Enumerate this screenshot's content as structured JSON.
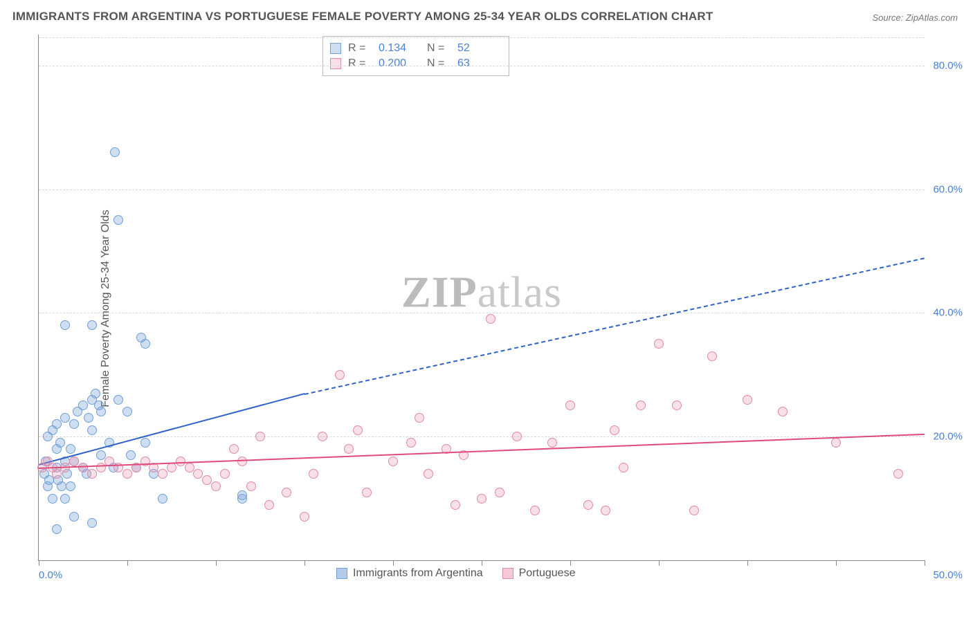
{
  "title": "IMMIGRANTS FROM ARGENTINA VS PORTUGUESE FEMALE POVERTY AMONG 25-34 YEAR OLDS CORRELATION CHART",
  "source": "Source: ZipAtlas.com",
  "ylabel": "Female Poverty Among 25-34 Year Olds",
  "watermark_bold": "ZIP",
  "watermark_rest": "atlas",
  "chart": {
    "type": "scatter",
    "xlim": [
      0,
      50
    ],
    "ylim": [
      0,
      85
    ],
    "xtick_positions": [
      0,
      5,
      10,
      15,
      20,
      25,
      30,
      35,
      40,
      45,
      50
    ],
    "xtick_labels": {
      "0": "0.0%",
      "50": "50.0%"
    },
    "ytick_positions": [
      20,
      40,
      60,
      80
    ],
    "ytick_labels": {
      "20": "20.0%",
      "40": "40.0%",
      "60": "60.0%",
      "80": "80.0%"
    },
    "grid_color": "#d8d8d8",
    "axis_color": "#888888",
    "background_color": "#ffffff",
    "tick_label_color": "#4a7fd8",
    "marker_radius": 7,
    "marker_border_width": 1.2,
    "series": [
      {
        "name": "Immigrants from Argentina",
        "fill_color": "rgba(120,160,215,0.35)",
        "border_color": "#6f9fd8",
        "R": "0.134",
        "N": "52",
        "trend": {
          "x0": 0,
          "y0": 15.5,
          "x1_solid": 15,
          "y1_solid": 27,
          "x1_dash": 50,
          "y1_dash": 49,
          "color": "#2e62c9"
        },
        "points": [
          [
            0.3,
            14
          ],
          [
            0.5,
            12
          ],
          [
            0.4,
            16
          ],
          [
            0.6,
            13
          ],
          [
            0.8,
            10
          ],
          [
            1.0,
            15
          ],
          [
            1.1,
            13
          ],
          [
            1.3,
            12
          ],
          [
            1.5,
            16
          ],
          [
            1.6,
            14
          ],
          [
            0.5,
            20
          ],
          [
            0.8,
            21
          ],
          [
            1.0,
            22
          ],
          [
            1.5,
            23
          ],
          [
            1.0,
            18
          ],
          [
            1.2,
            19
          ],
          [
            1.8,
            18
          ],
          [
            2.0,
            22
          ],
          [
            2.2,
            24
          ],
          [
            2.5,
            25
          ],
          [
            2.8,
            23
          ],
          [
            3.0,
            21
          ],
          [
            3.0,
            26
          ],
          [
            3.2,
            27
          ],
          [
            3.4,
            25
          ],
          [
            3.5,
            24
          ],
          [
            2.0,
            16
          ],
          [
            2.5,
            15
          ],
          [
            2.7,
            14
          ],
          [
            1.5,
            10
          ],
          [
            1.8,
            12
          ],
          [
            3.5,
            17
          ],
          [
            4.0,
            19
          ],
          [
            4.2,
            15
          ],
          [
            4.5,
            26
          ],
          [
            5.0,
            24
          ],
          [
            5.2,
            17
          ],
          [
            5.5,
            15
          ],
          [
            6.0,
            19
          ],
          [
            6.5,
            14
          ],
          [
            7.0,
            10
          ],
          [
            5.8,
            36
          ],
          [
            4.3,
            66
          ],
          [
            4.5,
            55
          ],
          [
            1.5,
            38
          ],
          [
            3.0,
            38
          ],
          [
            6.0,
            35
          ],
          [
            2.0,
            7
          ],
          [
            1.0,
            5
          ],
          [
            3.0,
            6
          ],
          [
            11.5,
            10
          ],
          [
            11.5,
            10.5
          ]
        ]
      },
      {
        "name": "Portuguese",
        "fill_color": "rgba(235,150,175,0.30)",
        "border_color": "#e08aa5",
        "R": "0.200",
        "N": "63",
        "trend": {
          "x0": 0,
          "y0": 15,
          "x1_solid": 50,
          "y1_solid": 20.5,
          "color": "#e04a7a"
        },
        "points": [
          [
            0.2,
            15
          ],
          [
            0.5,
            16
          ],
          [
            0.8,
            15
          ],
          [
            1.0,
            14
          ],
          [
            1.5,
            15
          ],
          [
            2.0,
            16
          ],
          [
            2.5,
            15
          ],
          [
            3.0,
            14
          ],
          [
            3.5,
            15
          ],
          [
            4.0,
            16
          ],
          [
            4.5,
            15
          ],
          [
            5.0,
            14
          ],
          [
            5.5,
            15
          ],
          [
            6.0,
            16
          ],
          [
            6.5,
            15
          ],
          [
            7.0,
            14
          ],
          [
            7.5,
            15
          ],
          [
            8.0,
            16
          ],
          [
            8.5,
            15
          ],
          [
            9.0,
            14
          ],
          [
            9.5,
            13
          ],
          [
            10.0,
            12
          ],
          [
            10.5,
            14
          ],
          [
            11.0,
            18
          ],
          [
            11.5,
            16
          ],
          [
            12.0,
            12
          ],
          [
            12.5,
            20
          ],
          [
            13.0,
            9
          ],
          [
            14.0,
            11
          ],
          [
            15.0,
            7
          ],
          [
            15.5,
            14
          ],
          [
            16.0,
            20
          ],
          [
            17.0,
            30
          ],
          [
            17.5,
            18
          ],
          [
            18.0,
            21
          ],
          [
            18.5,
            11
          ],
          [
            20.0,
            16
          ],
          [
            21.0,
            19
          ],
          [
            21.5,
            23
          ],
          [
            22.0,
            14
          ],
          [
            23.0,
            18
          ],
          [
            23.5,
            9
          ],
          [
            24.0,
            17
          ],
          [
            25.0,
            10
          ],
          [
            25.5,
            39
          ],
          [
            26.0,
            11
          ],
          [
            27.0,
            20
          ],
          [
            28.0,
            8
          ],
          [
            29.0,
            19
          ],
          [
            30.0,
            25
          ],
          [
            31.0,
            9
          ],
          [
            32.0,
            8
          ],
          [
            32.5,
            21
          ],
          [
            33.0,
            15
          ],
          [
            34.0,
            25
          ],
          [
            35.0,
            35
          ],
          [
            36.0,
            25
          ],
          [
            37.0,
            8
          ],
          [
            38.0,
            33
          ],
          [
            40.0,
            26
          ],
          [
            42.0,
            24
          ],
          [
            45.0,
            19
          ],
          [
            48.5,
            14
          ]
        ]
      }
    ]
  },
  "legend_bottom": [
    {
      "label": "Immigrants from Argentina",
      "fill": "rgba(120,160,215,0.55)",
      "border": "#6f9fd8"
    },
    {
      "label": "Portuguese",
      "fill": "rgba(235,150,175,0.50)",
      "border": "#e08aa5"
    }
  ]
}
